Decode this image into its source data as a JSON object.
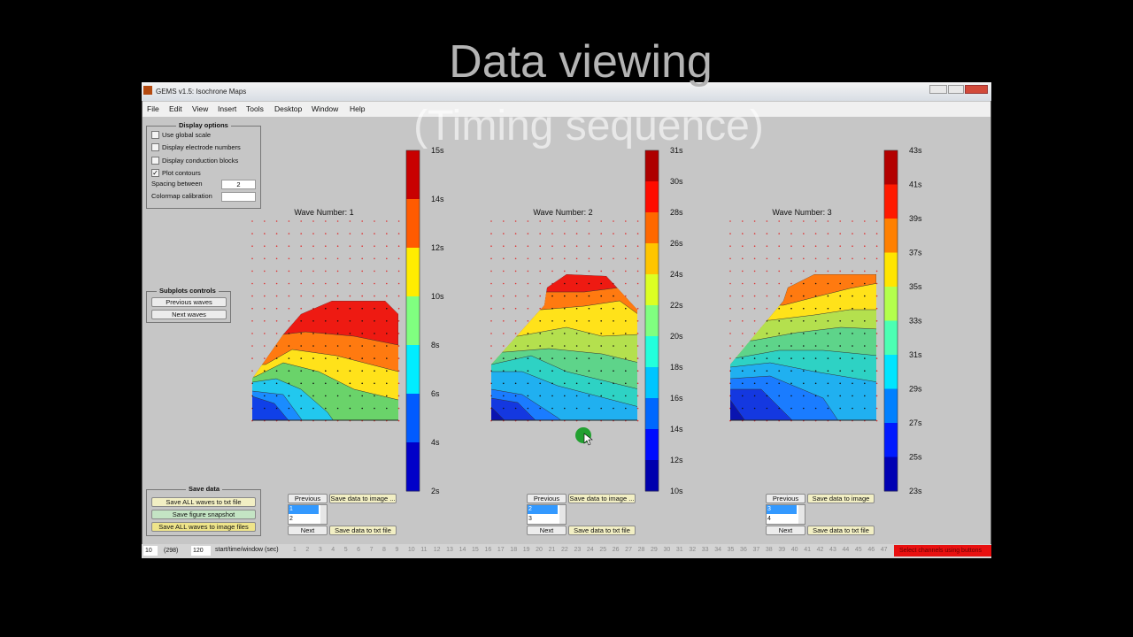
{
  "overlay": {
    "title": "Data viewing",
    "subtitle": "(Timing sequence)"
  },
  "window": {
    "title": "GEMS v1.5: Isochrone Maps"
  },
  "menu": [
    "File",
    "Edit",
    "View",
    "Insert",
    "Tools",
    "Desktop",
    "Window",
    "Help"
  ],
  "display_options": {
    "title": "Display options",
    "checkboxes": [
      {
        "label": "Use global scale",
        "checked": false
      },
      {
        "label": "Display electrode numbers",
        "checked": false
      },
      {
        "label": "Display conduction blocks",
        "checked": false
      },
      {
        "label": "Plot contours",
        "checked": true
      }
    ],
    "spacing_label": "Spacing between",
    "spacing_value": "2",
    "colormap_label": "Colormap calibration"
  },
  "subplots_controls": {
    "title": "Subplots controls",
    "buttons": [
      "Previous waves",
      "Next waves"
    ]
  },
  "save_data": {
    "title": "Save data",
    "buttons": [
      "Save ALL waves to txt file",
      "Save figure snapshot",
      "Save ALL waves to image files"
    ]
  },
  "plots": [
    {
      "title": "Wave Number: 1",
      "colorbar": [
        "15s",
        "14s",
        "12s",
        "10s",
        "8s",
        "6s",
        "4s",
        "2s"
      ],
      "previous": "Previous",
      "save_image": "Save data to image ...",
      "list": [
        "1",
        "2"
      ],
      "next": "Next",
      "save_txt": "Save data to txt file"
    },
    {
      "title": "Wave Number: 2",
      "colorbar": [
        "31s",
        "30s",
        "28s",
        "26s",
        "24s",
        "22s",
        "20s",
        "18s",
        "16s",
        "14s",
        "12s",
        "10s"
      ],
      "previous": "Previous",
      "save_image": "Save data to image ...",
      "list": [
        "2",
        "3"
      ],
      "next": "Next",
      "save_txt": "Save data to txt file"
    },
    {
      "title": "Wave Number: 3",
      "colorbar": [
        "43s",
        "41s",
        "39s",
        "37s",
        "35s",
        "33s",
        "31s",
        "29s",
        "27s",
        "25s",
        "23s"
      ],
      "previous": "Previous",
      "save_image": "Save data to image",
      "list": [
        "3",
        "4"
      ],
      "next": "Next",
      "save_txt": "Save data to txt file"
    }
  ],
  "status_bar": {
    "fields": [
      "10",
      "(298)",
      "120"
    ],
    "label": "start/time/window (sec)",
    "channels": [
      1,
      2,
      3,
      4,
      5,
      6,
      7,
      8,
      9,
      10,
      11,
      12,
      13,
      14,
      15,
      16,
      17,
      18,
      19,
      20,
      21,
      22,
      23,
      24,
      25,
      26,
      27,
      28,
      29,
      30,
      31,
      32,
      33,
      34,
      35,
      36,
      37,
      38,
      39,
      40,
      41,
      42,
      43,
      44,
      45,
      46,
      47
    ],
    "message": "Select channels using buttons"
  }
}
